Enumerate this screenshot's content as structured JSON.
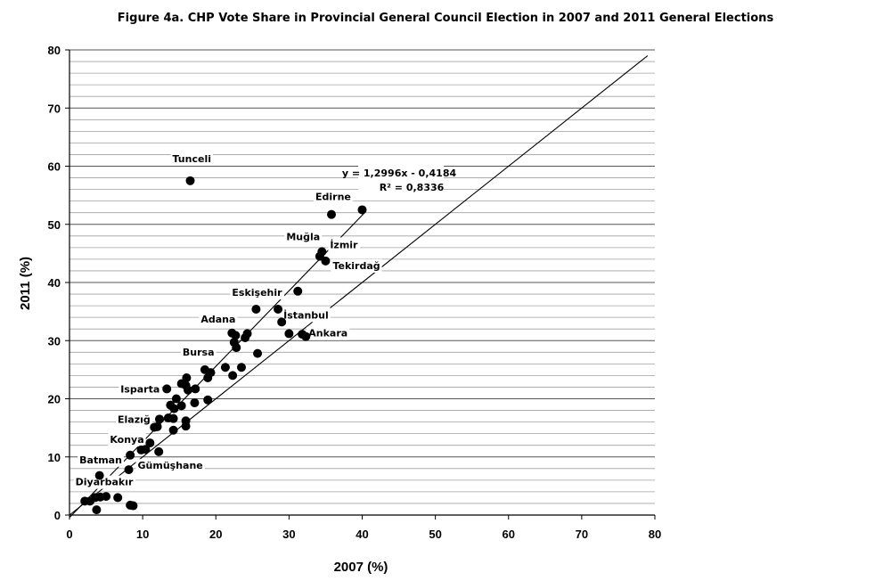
{
  "chart_data": {
    "type": "scatter",
    "title": "Figure 4a. CHP Vote Share in Provincial General Council Election in 2007 and 2011 General Elections",
    "xlabel": "2007 (%)",
    "ylabel": "2011 (%)",
    "xlim": [
      0,
      80
    ],
    "ylim": [
      0,
      80
    ],
    "x_ticks": [
      0,
      10,
      20,
      30,
      40,
      50,
      60,
      70,
      80
    ],
    "y_ticks": [
      0,
      10,
      20,
      30,
      40,
      50,
      60,
      70,
      80
    ],
    "y_minor_step": 2,
    "grid": true,
    "diagonal_line": {
      "x": [
        0,
        79
      ],
      "y": [
        0,
        79
      ]
    },
    "trendline": {
      "slope": 1.2996,
      "intercept": -0.4184,
      "x_range": [
        0,
        40.5
      ],
      "equation_text": "y = 1,2996x - 0,4184",
      "r2_text": "R² = 0,8336"
    },
    "points": [
      {
        "x": 16.5,
        "y": 57.5
      },
      {
        "x": 40.0,
        "y": 52.5
      },
      {
        "x": 35.8,
        "y": 51.7
      },
      {
        "x": 34.5,
        "y": 45.3
      },
      {
        "x": 34.2,
        "y": 44.5
      },
      {
        "x": 35.0,
        "y": 43.7
      },
      {
        "x": 31.2,
        "y": 38.5
      },
      {
        "x": 25.5,
        "y": 35.4
      },
      {
        "x": 28.5,
        "y": 35.4
      },
      {
        "x": 29.0,
        "y": 33.2
      },
      {
        "x": 22.2,
        "y": 31.3
      },
      {
        "x": 22.7,
        "y": 30.9
      },
      {
        "x": 24.0,
        "y": 30.5
      },
      {
        "x": 24.3,
        "y": 31.2
      },
      {
        "x": 22.5,
        "y": 29.7
      },
      {
        "x": 22.8,
        "y": 28.8
      },
      {
        "x": 25.7,
        "y": 27.8
      },
      {
        "x": 30.0,
        "y": 31.2
      },
      {
        "x": 31.8,
        "y": 31.1
      },
      {
        "x": 32.3,
        "y": 30.7
      },
      {
        "x": 21.3,
        "y": 25.4
      },
      {
        "x": 23.5,
        "y": 25.4
      },
      {
        "x": 18.5,
        "y": 25.0
      },
      {
        "x": 19.3,
        "y": 24.5
      },
      {
        "x": 18.9,
        "y": 23.6
      },
      {
        "x": 22.3,
        "y": 24.0
      },
      {
        "x": 16.0,
        "y": 23.6
      },
      {
        "x": 15.3,
        "y": 22.6
      },
      {
        "x": 15.9,
        "y": 22.3
      },
      {
        "x": 13.3,
        "y": 21.7
      },
      {
        "x": 16.2,
        "y": 21.5
      },
      {
        "x": 17.2,
        "y": 21.7
      },
      {
        "x": 14.6,
        "y": 20.0
      },
      {
        "x": 13.8,
        "y": 18.9
      },
      {
        "x": 14.3,
        "y": 18.3
      },
      {
        "x": 15.3,
        "y": 18.8
      },
      {
        "x": 17.1,
        "y": 19.3
      },
      {
        "x": 18.9,
        "y": 19.8
      },
      {
        "x": 12.3,
        "y": 16.5
      },
      {
        "x": 13.5,
        "y": 16.7
      },
      {
        "x": 14.2,
        "y": 16.6
      },
      {
        "x": 15.9,
        "y": 16.2
      },
      {
        "x": 15.9,
        "y": 15.3
      },
      {
        "x": 11.6,
        "y": 15.1
      },
      {
        "x": 12.0,
        "y": 15.2
      },
      {
        "x": 14.2,
        "y": 14.6
      },
      {
        "x": 11.0,
        "y": 12.4
      },
      {
        "x": 9.8,
        "y": 11.2
      },
      {
        "x": 10.4,
        "y": 11.3
      },
      {
        "x": 12.2,
        "y": 10.9
      },
      {
        "x": 8.3,
        "y": 10.3
      },
      {
        "x": 8.1,
        "y": 7.8
      },
      {
        "x": 4.1,
        "y": 6.8
      },
      {
        "x": 2.1,
        "y": 2.4
      },
      {
        "x": 2.8,
        "y": 2.4
      },
      {
        "x": 3.5,
        "y": 3.0
      },
      {
        "x": 4.2,
        "y": 3.1
      },
      {
        "x": 5.0,
        "y": 3.2
      },
      {
        "x": 6.6,
        "y": 3.0
      },
      {
        "x": 3.7,
        "y": 0.9
      },
      {
        "x": 8.3,
        "y": 1.7
      },
      {
        "x": 8.7,
        "y": 1.6
      }
    ],
    "labels": [
      {
        "text": "Tunceli",
        "x": 16.5,
        "y": 57.5,
        "dx": -20,
        "dy": -21
      },
      {
        "text": "Edirne",
        "x": 35.8,
        "y": 51.7,
        "dx": -18,
        "dy": -16
      },
      {
        "text": "Muğla",
        "x": 34.5,
        "y": 45.3,
        "dx": -40,
        "dy": -13
      },
      {
        "text": "İzmir",
        "x": 34.5,
        "y": 45.3,
        "dx": 9,
        "dy": -4
      },
      {
        "text": "Tekirdağ",
        "x": 35.0,
        "y": 43.7,
        "dx": 8,
        "dy": 9
      },
      {
        "text": "Eskişehir",
        "x": 25.5,
        "y": 35.4,
        "dx": -27,
        "dy": -15
      },
      {
        "text": "Adana",
        "x": 22.2,
        "y": 31.3,
        "dx": -35,
        "dy": -12
      },
      {
        "text": "İstanbul",
        "x": 29.0,
        "y": 33.2,
        "dx": 2,
        "dy": -4
      },
      {
        "text": "Ankara",
        "x": 32.3,
        "y": 30.7,
        "dx": 3,
        "dy": 0
      },
      {
        "text": "Bursa",
        "x": 18.5,
        "y": 25.0,
        "dx": -25,
        "dy": -16
      },
      {
        "text": "Isparta",
        "x": 13.3,
        "y": 21.7,
        "dx": -52,
        "dy": 4
      },
      {
        "text": "Elazığ",
        "x": 12.3,
        "y": 16.5,
        "dx": -47,
        "dy": 4
      },
      {
        "text": "Konya",
        "x": 11.0,
        "y": 12.4,
        "dx": -45,
        "dy": 0
      },
      {
        "text": "Batman",
        "x": 8.3,
        "y": 10.3,
        "dx": -57,
        "dy": 9
      },
      {
        "text": "Gümüşhane",
        "x": 8.1,
        "y": 7.8,
        "dx": 10,
        "dy": -1
      },
      {
        "text": "Diyarbakır",
        "x": 4.1,
        "y": 6.8,
        "dx": -27,
        "dy": 11
      }
    ],
    "colors": {
      "points": "#000000",
      "grid": "#a0a0a0",
      "lines": "#000000",
      "background": "#ffffff"
    }
  }
}
